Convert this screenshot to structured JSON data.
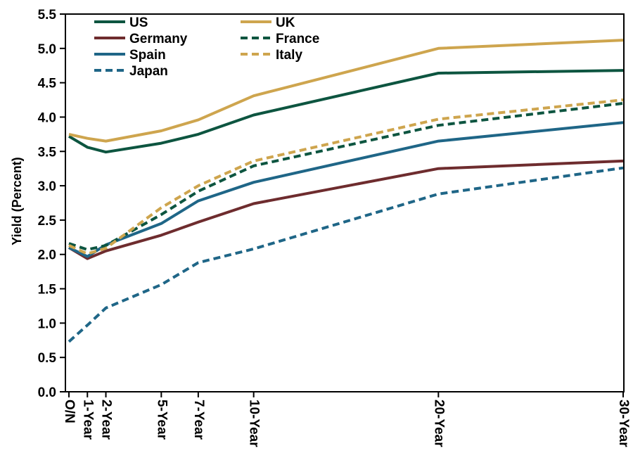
{
  "chart_data": {
    "type": "line",
    "title": "",
    "xlabel": "",
    "ylabel": "Yield (Percent)",
    "categories": [
      "O/N",
      "1-Year",
      "2-Year",
      "5-Year",
      "7-Year",
      "10-Year",
      "20-Year",
      "30-Year"
    ],
    "x_years": [
      0,
      1,
      2,
      5,
      7,
      10,
      20,
      30
    ],
    "ylim": [
      0.0,
      5.5
    ],
    "ytick_step": 0.5,
    "ytick_labels": [
      "0.0",
      "0.5",
      "1.0",
      "1.5",
      "2.0",
      "2.5",
      "3.0",
      "3.5",
      "4.0",
      "4.5",
      "5.0",
      "5.5"
    ],
    "grid": false,
    "legend_position": "top-left-inside",
    "legend_columns": [
      [
        "US",
        "Germany",
        "Spain",
        "Japan"
      ],
      [
        "UK",
        "France",
        "Italy"
      ]
    ],
    "axis_color": "#000000",
    "series": [
      {
        "name": "US",
        "color": "#0d5540",
        "style": "solid",
        "values": [
          3.72,
          3.56,
          3.49,
          3.62,
          3.75,
          4.03,
          4.64,
          4.68
        ]
      },
      {
        "name": "Germany",
        "color": "#6e2c2e",
        "style": "solid",
        "values": [
          2.1,
          1.94,
          2.05,
          2.28,
          2.47,
          2.74,
          3.25,
          3.36
        ]
      },
      {
        "name": "Spain",
        "color": "#1f6687",
        "style": "solid",
        "values": [
          2.1,
          1.97,
          2.14,
          2.45,
          2.78,
          3.05,
          3.65,
          3.92
        ]
      },
      {
        "name": "Japan",
        "color": "#1f6687",
        "style": "dashed",
        "values": [
          0.73,
          0.97,
          1.22,
          1.56,
          1.88,
          2.08,
          2.88,
          3.26
        ]
      },
      {
        "name": "UK",
        "color": "#cea54e",
        "style": "solid",
        "values": [
          3.75,
          3.69,
          3.65,
          3.8,
          3.96,
          4.31,
          5.0,
          5.12
        ]
      },
      {
        "name": "France",
        "color": "#0d5540",
        "style": "dashed",
        "values": [
          2.16,
          2.07,
          2.13,
          2.58,
          2.92,
          3.29,
          3.88,
          4.2
        ]
      },
      {
        "name": "Italy",
        "color": "#cea54e",
        "style": "dashed",
        "values": [
          2.13,
          2.01,
          2.09,
          2.68,
          3.0,
          3.36,
          3.97,
          4.25
        ]
      }
    ]
  }
}
